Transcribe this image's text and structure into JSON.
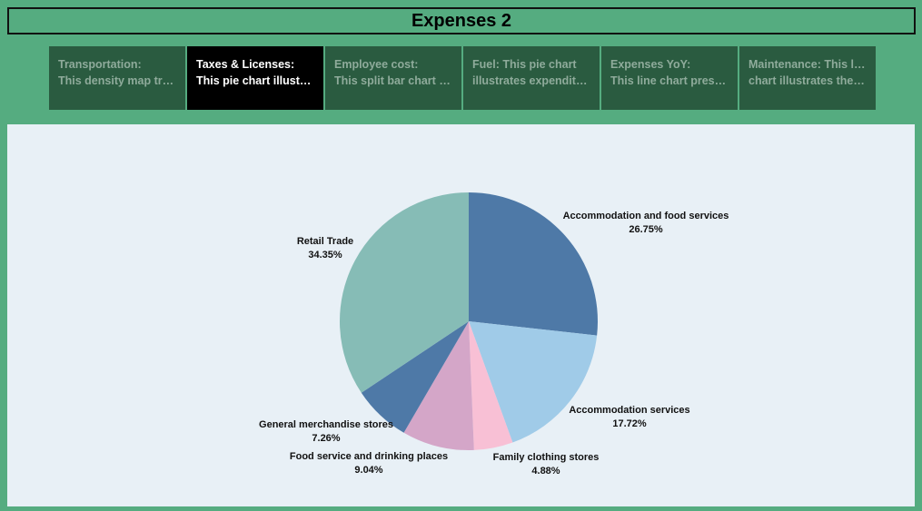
{
  "header": {
    "title": "Expenses 2"
  },
  "tabs": [
    {
      "line1": "Transportation:",
      "line2": "This density map tran..",
      "active": false
    },
    {
      "line1": "Taxes & Licenses:",
      "line2": "This pie chart  illustra..",
      "active": true
    },
    {
      "line1": "Employee cost:",
      "line2": "This split bar chart pr..",
      "active": false
    },
    {
      "line1": "Fuel: This pie chart",
      "line2": "illustrates expenditur..",
      "active": false
    },
    {
      "line1": "Expenses YoY:",
      "line2": "This line chart presen..",
      "active": false
    },
    {
      "line1": "Maintenance: This line",
      "line2": "chart illustrates the e..",
      "active": false
    }
  ],
  "colors": {
    "background": "#55ac80",
    "panel": "#e8f0f6",
    "tab": "#2a5b40",
    "tab_active": "#000000"
  },
  "chart_data": {
    "type": "pie",
    "title": "",
    "slices": [
      {
        "label": "Accommodation and food services",
        "value": 26.75,
        "display": "26.75%",
        "color": "#4e79a7"
      },
      {
        "label": "Accommodation services",
        "value": 17.72,
        "display": "17.72%",
        "color": "#a0cbe8"
      },
      {
        "label": "Family clothing stores",
        "value": 4.88,
        "display": "4.88%",
        "color": "#f8c0d5"
      },
      {
        "label": "Food service and drinking places",
        "value": 9.04,
        "display": "9.04%",
        "color": "#d4a6c8"
      },
      {
        "label": "General merchandise stores",
        "value": 7.26,
        "display": "7.26%",
        "color": "#4e79a7"
      },
      {
        "label": "Retail Trade",
        "value": 34.35,
        "display": "34.35%",
        "color": "#86bcb6"
      }
    ]
  }
}
